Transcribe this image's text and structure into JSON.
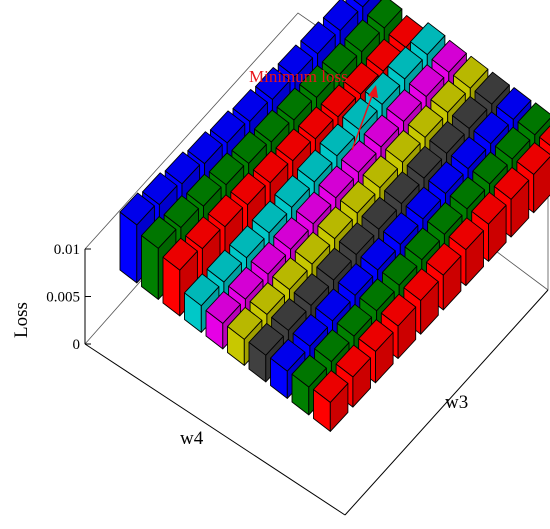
{
  "chart_data": {
    "type": "bar3d",
    "zlabel": "Loss",
    "xlabel": "w4",
    "ylabel": "w3",
    "zlim": [
      0,
      0.01
    ],
    "z_ticks": [
      {
        "value": 0,
        "label": "0"
      },
      {
        "value": 0.005,
        "label": "0.005"
      },
      {
        "value": 0.01,
        "label": "0.01"
      }
    ],
    "annotation": {
      "text": "Minimum loss",
      "color": "#e8141a"
    },
    "series": [
      {
        "color": "#0000ff",
        "values": [
          0.01,
          0.0093,
          0.0087,
          0.008,
          0.0074,
          0.0069,
          0.0065,
          0.0062,
          0.006,
          0.0058,
          0.0057
        ]
      },
      {
        "color": "#008000",
        "values": [
          0.0088,
          0.0082,
          0.0077,
          0.0072,
          0.0067,
          0.0062,
          0.0058,
          0.0055,
          0.0052,
          0.005,
          0.0049
        ]
      },
      {
        "color": "#ff0000",
        "values": [
          0.0079,
          0.0074,
          0.007,
          0.0066,
          0.0062,
          0.0058,
          0.0054,
          0.005,
          0.0047,
          0.0045,
          0.0044
        ]
      },
      {
        "color": "#00c8c8",
        "values": [
          0.0046,
          0.0045,
          0.0045,
          0.0046,
          0.0048,
          0.005,
          0.0053,
          0.0056,
          0.0058,
          0.006,
          0.006
        ]
      },
      {
        "color": "#e600e6",
        "values": [
          0.0044,
          0.0044,
          0.0045,
          0.0046,
          0.0048,
          0.0051,
          0.0053,
          0.0055,
          0.0057,
          0.0058,
          0.0058
        ]
      },
      {
        "color": "#c8c800",
        "values": [
          0.0045,
          0.0046,
          0.0047,
          0.0049,
          0.0051,
          0.0053,
          0.0055,
          0.0057,
          0.0058,
          0.0059,
          0.0059
        ]
      },
      {
        "color": "#404040",
        "values": [
          0.0046,
          0.0047,
          0.0048,
          0.005,
          0.0052,
          0.0054,
          0.0056,
          0.0058,
          0.0059,
          0.006,
          0.006
        ]
      },
      {
        "color": "#0000ff",
        "values": [
          0.0047,
          0.0048,
          0.005,
          0.0052,
          0.0054,
          0.0056,
          0.0058,
          0.006,
          0.0061,
          0.0062,
          0.0062
        ]
      },
      {
        "color": "#008000",
        "values": [
          0.0048,
          0.005,
          0.0052,
          0.0054,
          0.0056,
          0.0058,
          0.006,
          0.0062,
          0.0063,
          0.0064,
          0.0064
        ]
      },
      {
        "color": "#ff0000",
        "values": [
          0.005,
          0.0052,
          0.0054,
          0.0056,
          0.0058,
          0.006,
          0.0062,
          0.0064,
          0.0065,
          0.0066,
          0.0066
        ]
      }
    ]
  }
}
